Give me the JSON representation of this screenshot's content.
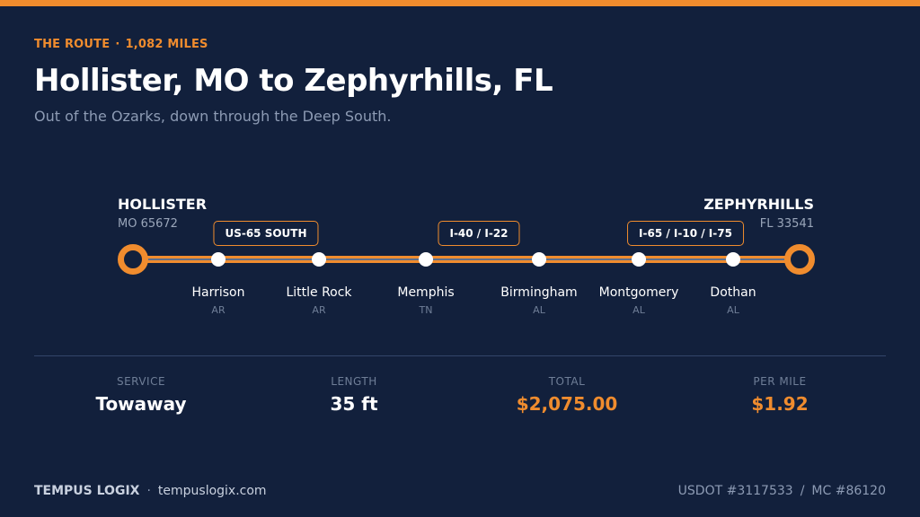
{
  "header": {
    "eyebrow_label": "THE ROUTE",
    "eyebrow_separator": "·",
    "eyebrow_distance": "1,082 MILES",
    "title": "Hollister, MO to Zephyrhills, FL",
    "subtitle": "Out of the Ozarks, down through the Deep South."
  },
  "route": {
    "origin": {
      "name": "HOLLISTER",
      "sub": "MO 65672"
    },
    "destination": {
      "name": "ZEPHYRHILLS",
      "sub": "FL 33541"
    },
    "stops": [
      {
        "city": "Harrison",
        "state": "AR"
      },
      {
        "city": "Little Rock",
        "state": "AR"
      },
      {
        "city": "Memphis",
        "state": "TN"
      },
      {
        "city": "Birmingham",
        "state": "AL"
      },
      {
        "city": "Montgomery",
        "state": "AL"
      },
      {
        "city": "Dothan",
        "state": "AL"
      }
    ],
    "highways": [
      "US-65 SOUTH",
      "I-40 / I-22",
      "I-65 / I-10 / I-75"
    ]
  },
  "stats": [
    {
      "label": "SERVICE",
      "value": "Towaway"
    },
    {
      "label": "LENGTH",
      "value": "35 ft"
    },
    {
      "label": "TOTAL",
      "value": "$2,075.00"
    },
    {
      "label": "PER MILE",
      "value": "$1.92"
    }
  ],
  "footer": {
    "brand": "TEMPUS LOGIX",
    "separator": "·",
    "website": "tempuslogix.com",
    "usdot": "USDOT #3117533",
    "divider": "/",
    "mc": "MC #86120"
  },
  "colors": {
    "background": "#12203c",
    "accent": "#f08c2e",
    "muted": "#8d9bb4"
  }
}
